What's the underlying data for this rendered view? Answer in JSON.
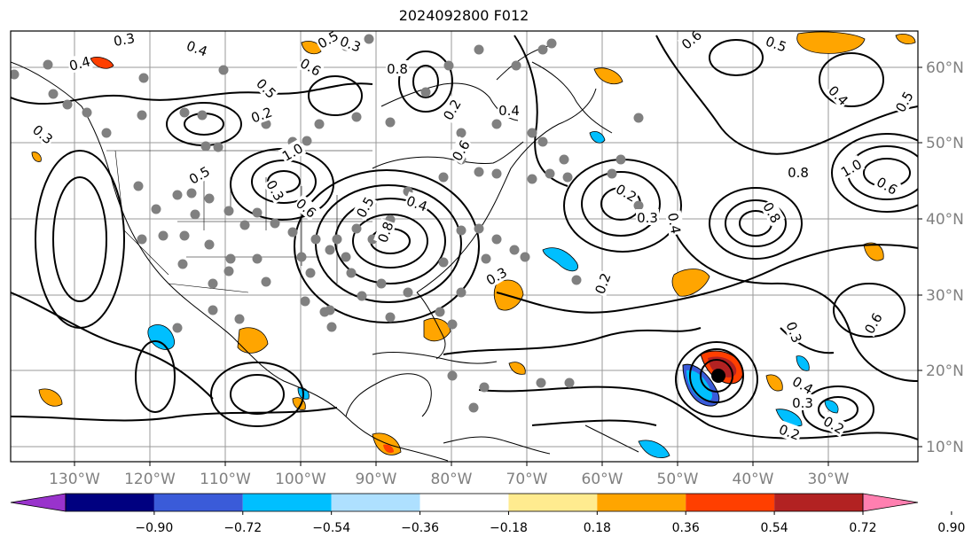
{
  "title": "2024092800 F012",
  "lon_labels": [
    "130°W",
    "120°W",
    "110°W",
    "100°W",
    "90°W",
    "80°W",
    "70°W",
    "60°W",
    "50°W",
    "40°W",
    "30°W"
  ],
  "lat_labels": [
    "60°N",
    "50°N",
    "40°N",
    "30°N",
    "20°N",
    "10°N"
  ],
  "colorbar": {
    "colors": [
      "#9933cc",
      "#000080",
      "#3a5bd9",
      "#00bfff",
      "#aee0ff",
      "#ffffff",
      "#ffeb8f",
      "#ffa500",
      "#ff3f00",
      "#b22222",
      "#ff7fb0"
    ],
    "tick_labels": [
      "−0.90",
      "−0.72",
      "−0.54",
      "−0.36",
      "−0.18",
      "0.18",
      "0.36",
      "0.54",
      "0.72",
      "0.90"
    ]
  },
  "contour_labels": [
    "0.3",
    "0.4",
    "0.5",
    "0.6",
    "0.8",
    "0.3",
    "0.5",
    "0.4",
    "0.3",
    "0.2",
    "0.3",
    "0.5",
    "0.6",
    "0.8",
    "0.4",
    "1.0",
    "0.5",
    "0.6",
    "0.2",
    "0.3",
    "0.4",
    "0.2",
    "0.3",
    "0.2",
    "0.4",
    "0.6",
    "0.5",
    "0.8",
    "0.4",
    "0.6",
    "0.8",
    "1.0",
    "0.5",
    "0.3",
    "0.4",
    "0.2",
    "0.2",
    "0.3",
    "0.6"
  ],
  "map_extent": {
    "lon_min": -138,
    "lon_max": -15,
    "lat_min": 7,
    "lat_max": 65
  }
}
